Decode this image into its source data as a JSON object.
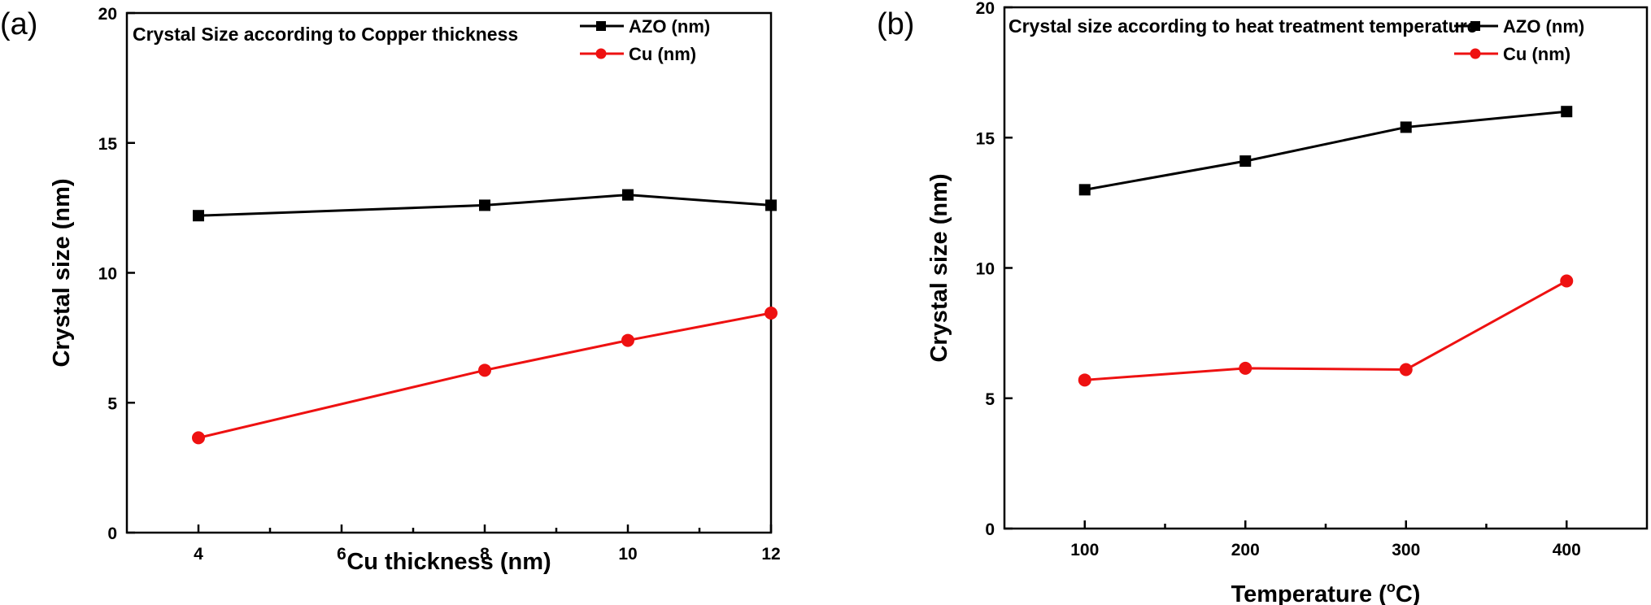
{
  "colors": {
    "azo": "#000000",
    "cu": "#ee1111"
  },
  "chart_data": [
    {
      "panel_label": "(a)",
      "type": "line",
      "title": "Crystal Size according to Copper thickness",
      "xlabel": "Cu thickness (nm)",
      "ylabel": "Crystal size (nm)",
      "xlim": [
        3,
        12
      ],
      "ylim": [
        0,
        20
      ],
      "xticks_major": [
        4,
        6,
        8,
        10,
        12
      ],
      "xticks_minor": [
        5,
        7,
        9,
        11
      ],
      "yticks": [
        0,
        5,
        10,
        15,
        20
      ],
      "grid": false,
      "legend_position": "top-right",
      "series": [
        {
          "name": "AZO (nm)",
          "marker": "square",
          "x": [
            4,
            8,
            10,
            12
          ],
          "values": [
            12.2,
            12.6,
            13.0,
            12.6
          ]
        },
        {
          "name": "Cu (nm)",
          "marker": "circle",
          "x": [
            4,
            8,
            10,
            12
          ],
          "values": [
            3.65,
            6.25,
            7.4,
            8.45
          ]
        }
      ]
    },
    {
      "panel_label": "(b)",
      "type": "line",
      "title": "Crystal size according to heat treatment temperature",
      "xlabel_prefix": "Temperature (",
      "xlabel_sup": "o",
      "xlabel_suffix": "C)",
      "ylabel": "Crystal size (nm)",
      "xlim": [
        50,
        450
      ],
      "ylim": [
        0,
        20
      ],
      "xticks_major": [
        100,
        200,
        300,
        400
      ],
      "xticks_minor": [
        150,
        250,
        350
      ],
      "yticks": [
        0,
        5,
        10,
        15,
        20
      ],
      "grid": false,
      "legend_position": "top-right",
      "series": [
        {
          "name": "AZO (nm)",
          "marker": "square",
          "x": [
            100,
            200,
            300,
            400
          ],
          "values": [
            13.0,
            14.1,
            15.4,
            16.0
          ]
        },
        {
          "name": "Cu (nm)",
          "marker": "circle",
          "x": [
            100,
            200,
            300,
            400
          ],
          "values": [
            5.7,
            6.15,
            6.1,
            9.5
          ]
        }
      ]
    }
  ]
}
